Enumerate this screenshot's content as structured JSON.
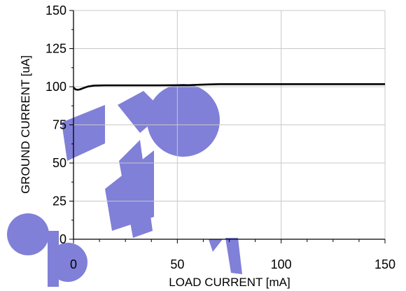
{
  "chart_data": {
    "type": "line",
    "title": "",
    "xlabel": "LOAD CURRENT [mA]",
    "ylabel": "GROUND CURRENT [uA]",
    "xlim": [
      0,
      150
    ],
    "ylim": [
      0,
      150
    ],
    "x_ticks": [
      0,
      50,
      100,
      150
    ],
    "y_ticks": [
      0,
      25,
      50,
      75,
      100,
      125,
      150
    ],
    "x_tick_labels": [
      "0",
      "50",
      "100",
      "150"
    ],
    "y_tick_labels": [
      "0",
      "25",
      "50",
      "75",
      "100",
      "125",
      "150"
    ],
    "grid": true,
    "series": [
      {
        "color": "#000000",
        "x": [
          0,
          1,
          2,
          3,
          5,
          7,
          10,
          15,
          20,
          30,
          40,
          50,
          55,
          60,
          65,
          70,
          80,
          90,
          100,
          110,
          120,
          130,
          140,
          150
        ],
        "y": [
          99.5,
          98.2,
          98.0,
          98.2,
          99.2,
          100.2,
          100.8,
          100.9,
          100.9,
          100.9,
          100.9,
          101.0,
          101.0,
          101.3,
          101.5,
          101.7,
          101.7,
          101.7,
          101.7,
          101.7,
          101.7,
          101.7,
          101.7,
          101.7
        ]
      }
    ],
    "watermark": {
      "text": "Obsolete",
      "color": "#8080d8"
    }
  }
}
